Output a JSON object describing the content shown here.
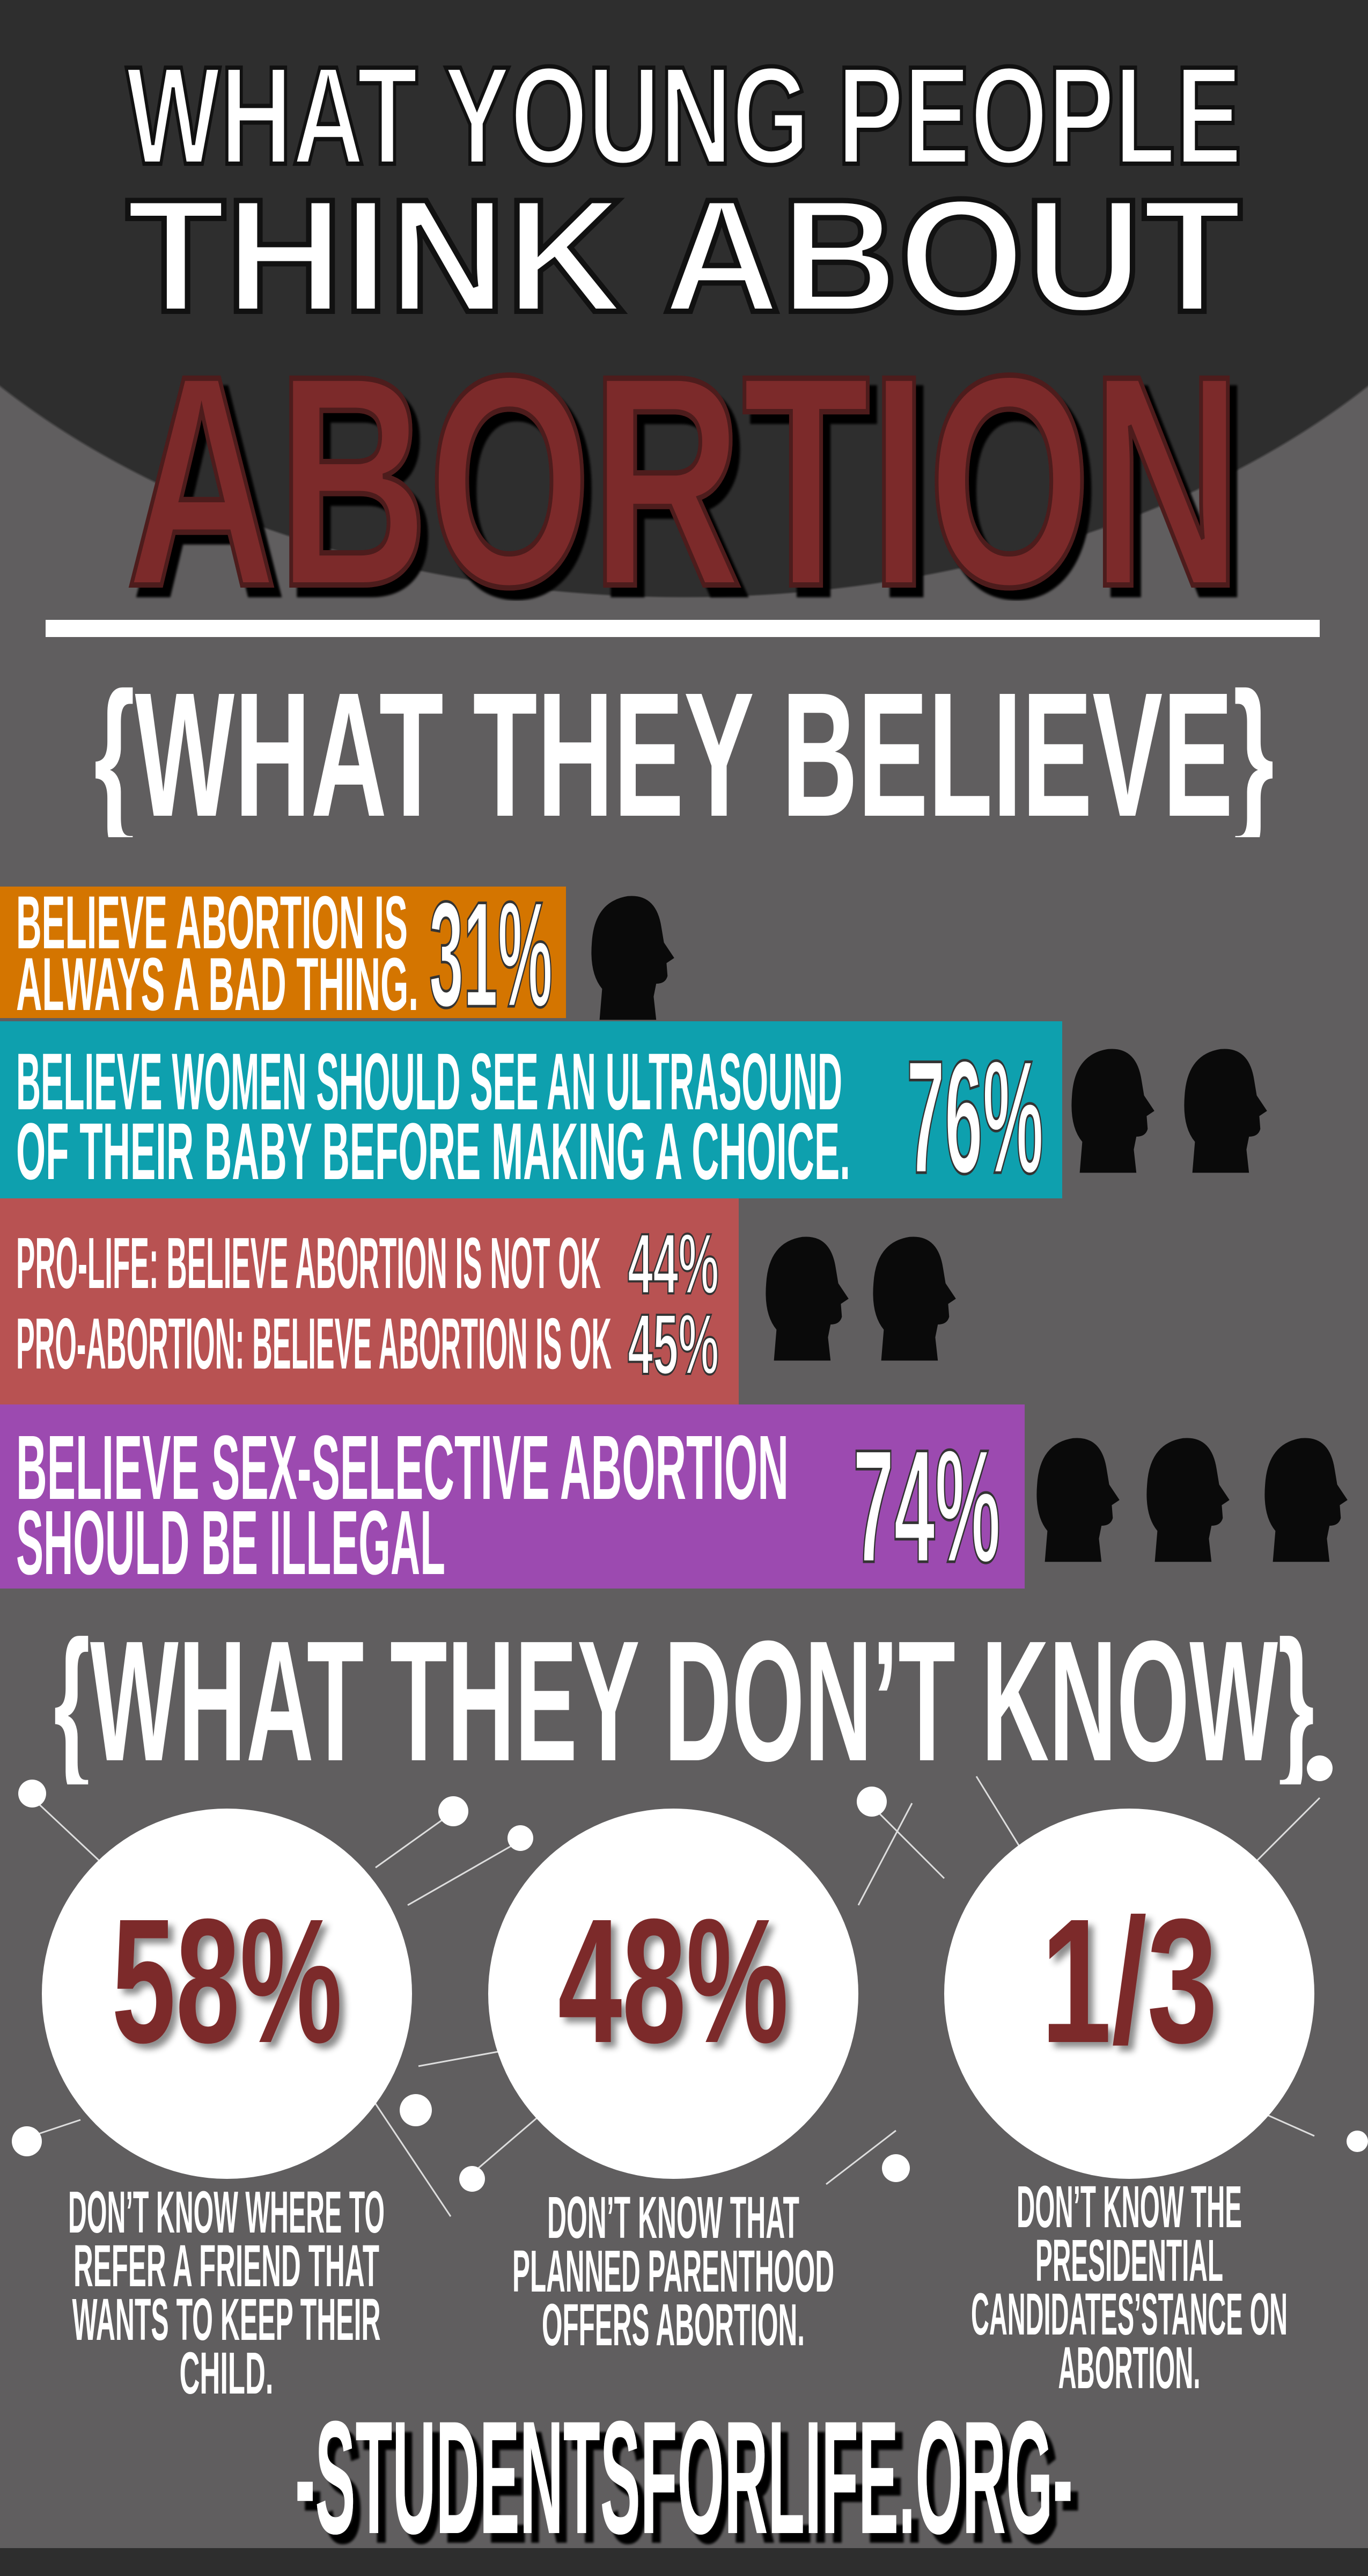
{
  "title": {
    "line1": "WHAT YOUNG PEOPLE",
    "line2": "THINK ABOUT",
    "line3": "ABORTION"
  },
  "section1": {
    "heading": "{WHAT THEY BELIEVE}",
    "bars": [
      {
        "label_line1": "BELIEVE ABORTION IS",
        "label_line2": "ALWAYS A BAD THING.",
        "percent": "31%",
        "color": "#d47500",
        "silhouettes": 1
      },
      {
        "label_line1": "BELIEVE WOMEN SHOULD SEE AN ULTRASOUND",
        "label_line2": "OF THEIR BABY BEFORE MAKING A CHOICE.",
        "percent": "76%",
        "color": "#0ea0ae",
        "silhouettes": 2
      },
      {
        "label_line1": "PRO-LIFE: BELIEVE ABORTION IS NOT OK",
        "percent1": "44%",
        "label_line2": "PRO-ABORTION: BELIEVE ABORTION IS OK",
        "percent2": "45%",
        "color": "#b85252",
        "silhouettes": 2
      },
      {
        "label_line1": "BELIEVE SEX-SELECTIVE ABORTION",
        "label_line2": "SHOULD BE ILLEGAL",
        "percent": "74%",
        "color": "#9c4ab0",
        "silhouettes": 3
      }
    ]
  },
  "section2": {
    "heading": "{WHAT THEY DON’T KNOW}",
    "stats": [
      {
        "value": "58%",
        "caption": [
          "DON’T KNOW WHERE TO",
          "REFER A FRIEND THAT",
          "WANTS TO KEEP THEIR",
          "CHILD."
        ]
      },
      {
        "value": "48%",
        "caption": [
          "DON’T KNOW THAT",
          "PLANNED PARENTHOOD",
          "OFFERS ABORTION."
        ]
      },
      {
        "value": "1/3",
        "caption": [
          "DON’T KNOW THE",
          "PRESIDENTIAL",
          "CANDIDATES’STANCE ON",
          "ABORTION."
        ]
      }
    ]
  },
  "footer": {
    "url": "-STUDENTSFORLIFE.ORG-"
  },
  "colors": {
    "background": "#605e5f",
    "header_dark": "#2e2e2e",
    "accent_red": "#7b2a2b"
  }
}
